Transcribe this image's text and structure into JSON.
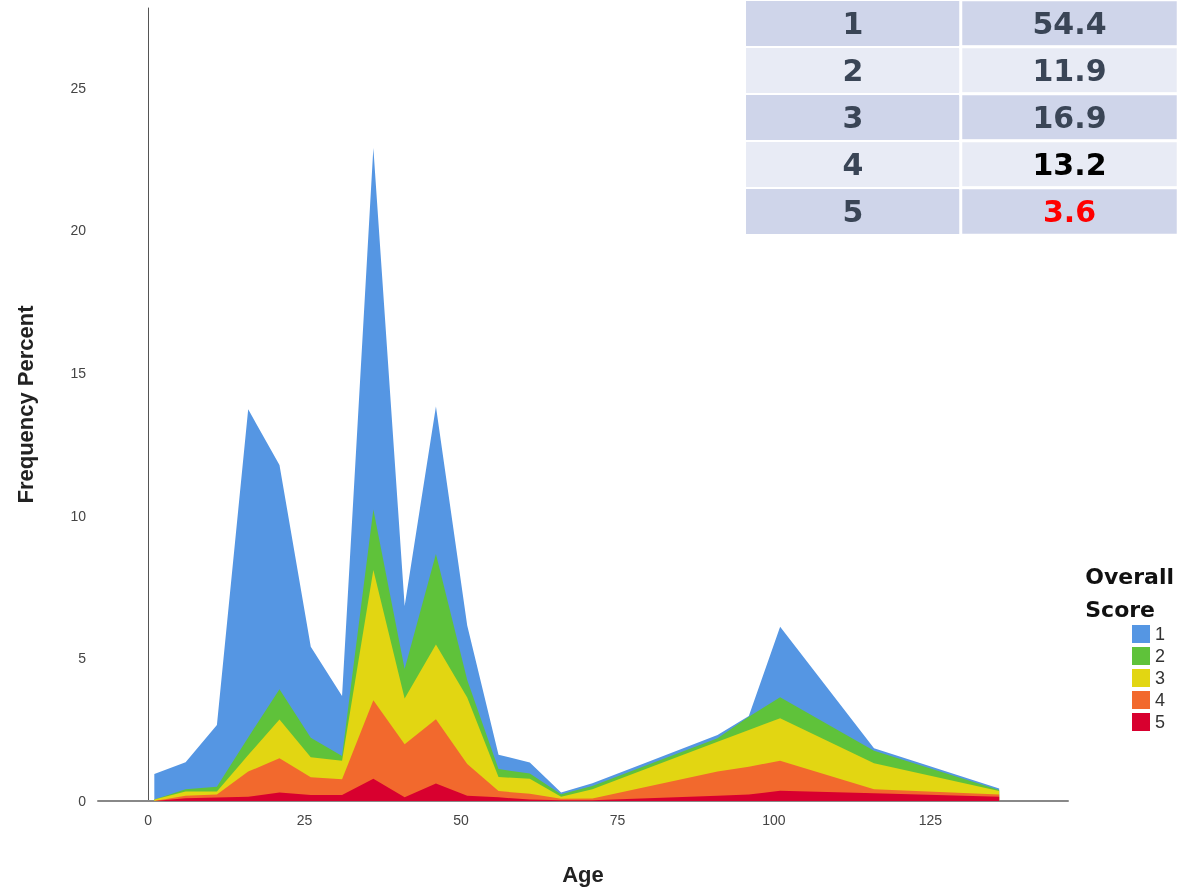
{
  "chart_data": [
    {
      "type": "area",
      "stacked": true,
      "xlabel": "Age",
      "ylabel": "Frequency Percent",
      "legend_title": "Overall Score",
      "legend": "right",
      "x": [
        1,
        6,
        11,
        16,
        21,
        26,
        31,
        36,
        41,
        46,
        51,
        56,
        61,
        66,
        71,
        91,
        96,
        101,
        116,
        136
      ],
      "xlim": [
        -8,
        147
      ],
      "xticks": [
        0,
        25,
        50,
        75,
        100,
        125
      ],
      "ylim": [
        0,
        27.8
      ],
      "yticks": [
        0,
        5,
        10,
        15,
        20,
        25
      ],
      "series": [
        {
          "name": "5",
          "color": "#d8002f",
          "values": [
            0,
            0.1,
            0.12,
            0.15,
            0.3,
            0.21,
            0.21,
            0.78,
            0.13,
            0.61,
            0.18,
            0.13,
            0.05,
            0.03,
            0.03,
            0.18,
            0.23,
            0.36,
            0.27,
            0.15
          ]
        },
        {
          "name": "4",
          "color": "#f2692d",
          "values": [
            0,
            0.08,
            0.11,
            0.88,
            1.2,
            0.62,
            0.55,
            2.75,
            1.86,
            2.26,
            1.12,
            0.22,
            0.2,
            0.05,
            0.06,
            0.85,
            0.97,
            1.05,
            0.14,
            0.08
          ]
        },
        {
          "name": "3",
          "color": "#e2d612",
          "values": [
            0.05,
            0.15,
            0.1,
            0.58,
            1.36,
            0.7,
            0.65,
            4.57,
            1.6,
            2.62,
            2.33,
            0.49,
            0.53,
            0.07,
            0.32,
            1.05,
            1.29,
            1.49,
            0.91,
            0.12
          ]
        },
        {
          "name": "2",
          "color": "#5fc23a",
          "values": [
            0,
            0.08,
            0.17,
            0.62,
            1.06,
            0.69,
            0.17,
            2.12,
            1.04,
            3.17,
            0.61,
            0.28,
            0.18,
            0.09,
            0.12,
            0.12,
            0.46,
            0.74,
            0.44,
            0.04
          ]
        },
        {
          "name": "1",
          "color": "#5596e3",
          "values": [
            0.9,
            0.95,
            2.16,
            11.5,
            7.86,
            3.19,
            2.1,
            12.67,
            2.21,
            5.17,
            1.91,
            0.5,
            0.39,
            0.06,
            0.09,
            0.11,
            0.03,
            2.47,
            0.09,
            0.05
          ]
        }
      ]
    },
    {
      "type": "heatmap",
      "categories": [
        null
      ],
      "y_categories": [
        "1",
        "2",
        "3",
        "4",
        "5"
      ],
      "cells": [
        [
          54.4
        ],
        [
          11.9
        ],
        [
          16.9
        ],
        [
          13.2
        ],
        [
          3.6
        ]
      ],
      "data_labels": true,
      "colors": [
        "#3a4556",
        "#3a4556",
        "#3a4556",
        "#000000",
        "#ff0000"
      ]
    }
  ]
}
